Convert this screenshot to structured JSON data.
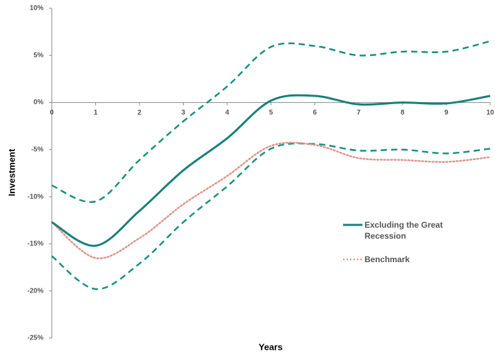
{
  "chart_data": {
    "type": "line",
    "x_label": "Years",
    "y_label": "Investment",
    "xlim": [
      0,
      10
    ],
    "xticks": [
      0,
      1,
      2,
      3,
      4,
      5,
      6,
      7,
      8,
      9,
      10
    ],
    "ylim": [
      -25,
      10
    ],
    "yticks": [
      {
        "value": -25,
        "label": "-25%"
      },
      {
        "value": -20,
        "label": "-20%"
      },
      {
        "value": -15,
        "label": "-15%"
      },
      {
        "value": -10,
        "label": "-10%"
      },
      {
        "value": -5,
        "label": "-5%"
      },
      {
        "value": 0,
        "label": "0%"
      },
      {
        "value": 5,
        "label": "5%"
      },
      {
        "value": 10,
        "label": "10%"
      }
    ],
    "legend": "right",
    "x": [
      0,
      1,
      2,
      3,
      4,
      5,
      6,
      7,
      8,
      9,
      10
    ],
    "series": [
      {
        "color": "#15907f",
        "style": "dashed",
        "values": [
          -8.8,
          -10.5,
          -6.1,
          -2.0,
          1.7,
          5.9,
          6.0,
          5.0,
          5.4,
          5.4,
          6.5
        ]
      },
      {
        "color": "#15907f",
        "style": "dashed",
        "values": [
          -16.3,
          -19.8,
          -17.1,
          -12.7,
          -8.9,
          -4.9,
          -4.4,
          -5.1,
          -5.0,
          -5.4,
          -4.9
        ]
      },
      {
        "name": "Benchmark",
        "color": "#df948c",
        "style": "dotted",
        "values": [
          -12.7,
          -16.5,
          -14.4,
          -10.8,
          -7.8,
          -4.6,
          -4.5,
          -5.9,
          -6.1,
          -6.3,
          -5.8
        ]
      },
      {
        "name": "Excluding the Great Recession",
        "color": "#15807a",
        "style": "solid",
        "values": [
          -12.7,
          -15.2,
          -11.5,
          -7.2,
          -3.8,
          0.2,
          0.7,
          -0.2,
          0,
          -0.1,
          0.7
        ]
      }
    ]
  }
}
